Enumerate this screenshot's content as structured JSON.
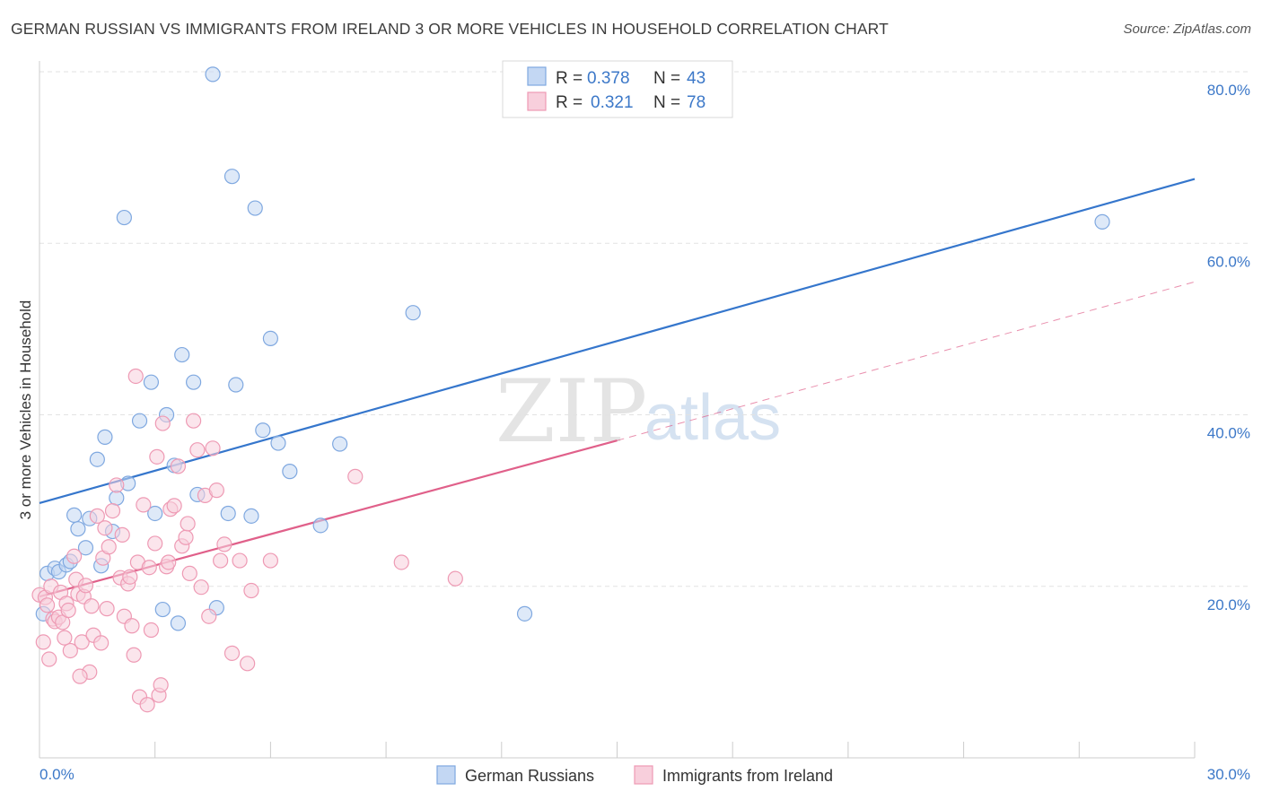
{
  "header": {
    "title": "GERMAN RUSSIAN VS IMMIGRANTS FROM IRELAND 3 OR MORE VEHICLES IN HOUSEHOLD CORRELATION CHART",
    "source": "Source: ZipAtlas.com"
  },
  "watermark": {
    "zip": "ZIP",
    "atlas": "atlas"
  },
  "legend": {
    "rows": [
      {
        "r_label": "R = ",
        "r_value": "0.378",
        "n_label": "N = ",
        "n_value": "43"
      },
      {
        "r_label": "R = ",
        "r_value": "0.321",
        "n_label": "N = ",
        "n_value": "78"
      }
    ]
  },
  "chart_data": {
    "type": "scatter",
    "title": "GERMAN RUSSIAN VS IMMIGRANTS FROM IRELAND 3 OR MORE VEHICLES IN HOUSEHOLD CORRELATION CHART",
    "xlabel": "",
    "ylabel": "3 or more Vehicles in Household",
    "xlim": [
      0,
      30
    ],
    "ylim": [
      0,
      80
    ],
    "x_tick_labels": [
      "0.0%",
      "30.0%"
    ],
    "y_ticks": [
      20,
      40,
      60,
      80
    ],
    "y_tick_labels": [
      "20.0%",
      "40.0%",
      "60.0%",
      "80.0%"
    ],
    "grid": true,
    "legend_position": "top-center",
    "series": [
      {
        "name": "German Russians",
        "color": "#7fa8e0",
        "fill": "#c3d7f3",
        "trend_color": "#3576cc",
        "trend": {
          "x": [
            0,
            30
          ],
          "y": [
            29.7,
            67.5
          ]
        },
        "points": [
          [
            0.1,
            16.8
          ],
          [
            0.2,
            21.5
          ],
          [
            0.4,
            22.1
          ],
          [
            0.5,
            21.7
          ],
          [
            0.7,
            22.5
          ],
          [
            0.8,
            22.9
          ],
          [
            0.9,
            28.3
          ],
          [
            1.0,
            26.7
          ],
          [
            1.2,
            24.5
          ],
          [
            1.3,
            27.9
          ],
          [
            1.5,
            34.8
          ],
          [
            1.6,
            22.4
          ],
          [
            1.7,
            37.4
          ],
          [
            1.9,
            26.4
          ],
          [
            2.0,
            30.3
          ],
          [
            2.2,
            63.0
          ],
          [
            2.3,
            32.0
          ],
          [
            2.6,
            39.3
          ],
          [
            2.9,
            43.8
          ],
          [
            3.0,
            28.5
          ],
          [
            3.2,
            17.3
          ],
          [
            3.3,
            40.0
          ],
          [
            3.5,
            34.1
          ],
          [
            3.6,
            15.7
          ],
          [
            3.7,
            47.0
          ],
          [
            4.0,
            43.8
          ],
          [
            4.1,
            30.7
          ],
          [
            4.5,
            79.7
          ],
          [
            4.6,
            17.5
          ],
          [
            4.9,
            28.5
          ],
          [
            5.0,
            67.8
          ],
          [
            5.1,
            43.5
          ],
          [
            5.5,
            28.2
          ],
          [
            5.6,
            64.1
          ],
          [
            5.8,
            38.2
          ],
          [
            6.0,
            48.9
          ],
          [
            6.2,
            36.7
          ],
          [
            6.5,
            33.4
          ],
          [
            7.3,
            27.1
          ],
          [
            7.8,
            36.6
          ],
          [
            9.7,
            51.9
          ],
          [
            12.6,
            16.8
          ],
          [
            27.6,
            62.5
          ]
        ]
      },
      {
        "name": "Immigrants from Ireland",
        "color": "#ee9ab4",
        "fill": "#f8cfdc",
        "trend_color": "#e0608a",
        "trend": {
          "x": [
            0,
            15
          ],
          "y": [
            18.8,
            37.0
          ]
        },
        "trend_ext": {
          "x": [
            15,
            30
          ],
          "y": [
            37.0,
            55.5
          ]
        },
        "points": [
          [
            0.0,
            19.0
          ],
          [
            0.1,
            13.5
          ],
          [
            0.15,
            18.7
          ],
          [
            0.2,
            17.8
          ],
          [
            0.3,
            20.0
          ],
          [
            0.35,
            16.2
          ],
          [
            0.4,
            15.9
          ],
          [
            0.5,
            16.4
          ],
          [
            0.55,
            19.3
          ],
          [
            0.6,
            15.8
          ],
          [
            0.7,
            18.0
          ],
          [
            0.75,
            17.2
          ],
          [
            0.8,
            12.5
          ],
          [
            0.9,
            23.5
          ],
          [
            0.95,
            20.8
          ],
          [
            1.0,
            19.1
          ],
          [
            1.1,
            13.5
          ],
          [
            1.15,
            18.8
          ],
          [
            1.2,
            20.1
          ],
          [
            1.3,
            10.0
          ],
          [
            1.35,
            17.7
          ],
          [
            1.4,
            14.3
          ],
          [
            1.5,
            28.2
          ],
          [
            1.6,
            13.4
          ],
          [
            1.65,
            23.3
          ],
          [
            1.7,
            26.8
          ],
          [
            1.75,
            17.4
          ],
          [
            1.8,
            24.6
          ],
          [
            1.9,
            28.8
          ],
          [
            2.0,
            31.8
          ],
          [
            2.1,
            21.0
          ],
          [
            2.15,
            26.0
          ],
          [
            2.2,
            16.5
          ],
          [
            2.3,
            20.3
          ],
          [
            2.35,
            21.1
          ],
          [
            2.4,
            15.4
          ],
          [
            2.5,
            44.5
          ],
          [
            2.55,
            22.8
          ],
          [
            2.6,
            7.1
          ],
          [
            2.7,
            29.5
          ],
          [
            2.8,
            6.2
          ],
          [
            2.85,
            22.2
          ],
          [
            2.9,
            14.9
          ],
          [
            3.0,
            25.0
          ],
          [
            3.05,
            35.1
          ],
          [
            3.1,
            7.3
          ],
          [
            3.15,
            8.5
          ],
          [
            3.2,
            39.0
          ],
          [
            3.3,
            22.3
          ],
          [
            3.35,
            22.8
          ],
          [
            3.4,
            29.0
          ],
          [
            3.5,
            29.4
          ],
          [
            3.6,
            34.0
          ],
          [
            3.7,
            24.7
          ],
          [
            3.8,
            25.7
          ],
          [
            3.85,
            27.3
          ],
          [
            3.9,
            21.5
          ],
          [
            4.0,
            39.3
          ],
          [
            4.1,
            35.9
          ],
          [
            4.2,
            19.9
          ],
          [
            4.3,
            30.6
          ],
          [
            4.4,
            16.5
          ],
          [
            4.5,
            36.1
          ],
          [
            4.6,
            31.2
          ],
          [
            4.7,
            23.0
          ],
          [
            4.8,
            24.9
          ],
          [
            5.0,
            12.2
          ],
          [
            5.2,
            23.0
          ],
          [
            5.4,
            11.0
          ],
          [
            5.5,
            19.5
          ],
          [
            6.0,
            23.0
          ],
          [
            8.2,
            32.8
          ],
          [
            9.4,
            22.8
          ],
          [
            10.8,
            20.9
          ],
          [
            0.25,
            11.5
          ],
          [
            0.65,
            14.0
          ],
          [
            1.05,
            9.5
          ],
          [
            2.45,
            12.0
          ]
        ]
      }
    ]
  },
  "bottom_legend": [
    "German Russians",
    "Immigrants from Ireland"
  ]
}
